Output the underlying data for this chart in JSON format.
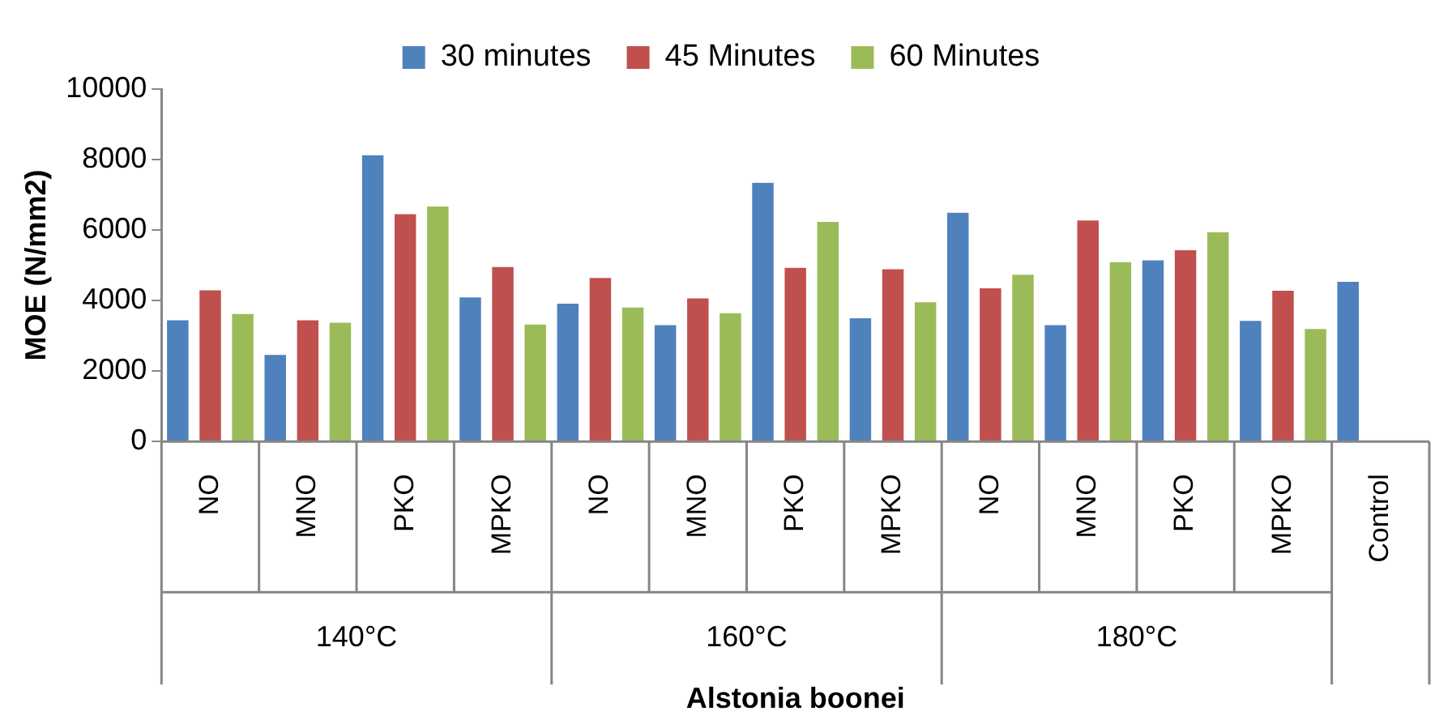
{
  "chart_data": {
    "type": "bar",
    "xlabel": "Alstonia boonei",
    "ylabel": "MOE (N/mm2)",
    "categories": [
      "NO",
      "MNO",
      "PKO",
      "MPKO",
      "NO",
      "MNO",
      "PKO",
      "MPKO",
      "NO",
      "MNO",
      "PKO",
      "MPKO",
      "Control"
    ],
    "series": [
      {
        "name": "30 minutes",
        "color": "#4f81bd",
        "values": [
          3440,
          2460,
          8120,
          4090,
          3910,
          3300,
          7340,
          3500,
          6490,
          3300,
          5140,
          3420,
          4530
        ]
      },
      {
        "name": "45 Minutes",
        "color": "#c0504d",
        "values": [
          4290,
          3440,
          6450,
          4950,
          4640,
          4060,
          4930,
          4890,
          4350,
          6270,
          5430,
          4280,
          null
        ]
      },
      {
        "name": "60 Minutes",
        "color": "#9bbb59",
        "values": [
          3620,
          3370,
          6670,
          3320,
          3800,
          3640,
          6230,
          3950,
          4730,
          5090,
          5940,
          3190,
          null
        ]
      }
    ],
    "annotations": [
      "140°C",
      "160°C",
      "180°C"
    ],
    "ylim": [
      0,
      10000
    ],
    "yticks": [
      0,
      2000,
      4000,
      6000,
      8000,
      10000
    ],
    "grid": false,
    "legend": "top"
  }
}
